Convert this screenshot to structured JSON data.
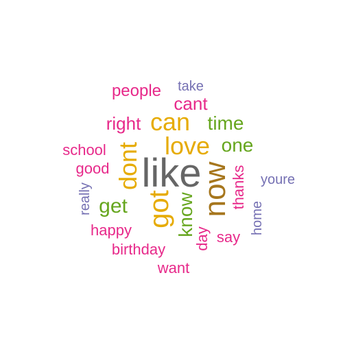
{
  "colors": {
    "pink": "#e7298a",
    "orange": "#e6ab02",
    "green": "#66a61e",
    "purple": "#7570b3",
    "brown": "#a6761d",
    "gray": "#666666"
  },
  "words": [
    {
      "text": "like",
      "color": "#666666"
    },
    {
      "text": "now",
      "color": "#a6761d"
    },
    {
      "text": "got",
      "color": "#e6ab02"
    },
    {
      "text": "dont",
      "color": "#e6ab02"
    },
    {
      "text": "can",
      "color": "#e6ab02"
    },
    {
      "text": "love",
      "color": "#e6ab02"
    },
    {
      "text": "time",
      "color": "#66a61e"
    },
    {
      "text": "one",
      "color": "#66a61e"
    },
    {
      "text": "get",
      "color": "#66a61e"
    },
    {
      "text": "know",
      "color": "#66a61e"
    },
    {
      "text": "cant",
      "color": "#e7298a"
    },
    {
      "text": "right",
      "color": "#e7298a"
    },
    {
      "text": "people",
      "color": "#e7298a"
    },
    {
      "text": "take",
      "color": "#7570b3"
    },
    {
      "text": "school",
      "color": "#e7298a"
    },
    {
      "text": "good",
      "color": "#e7298a"
    },
    {
      "text": "thanks",
      "color": "#e7298a"
    },
    {
      "text": "youre",
      "color": "#7570b3"
    },
    {
      "text": "really",
      "color": "#7570b3"
    },
    {
      "text": "happy",
      "color": "#e7298a"
    },
    {
      "text": "birthday",
      "color": "#e7298a"
    },
    {
      "text": "want",
      "color": "#e7298a"
    },
    {
      "text": "day",
      "color": "#e7298a"
    },
    {
      "text": "say",
      "color": "#e7298a"
    },
    {
      "text": "home",
      "color": "#7570b3"
    }
  ]
}
